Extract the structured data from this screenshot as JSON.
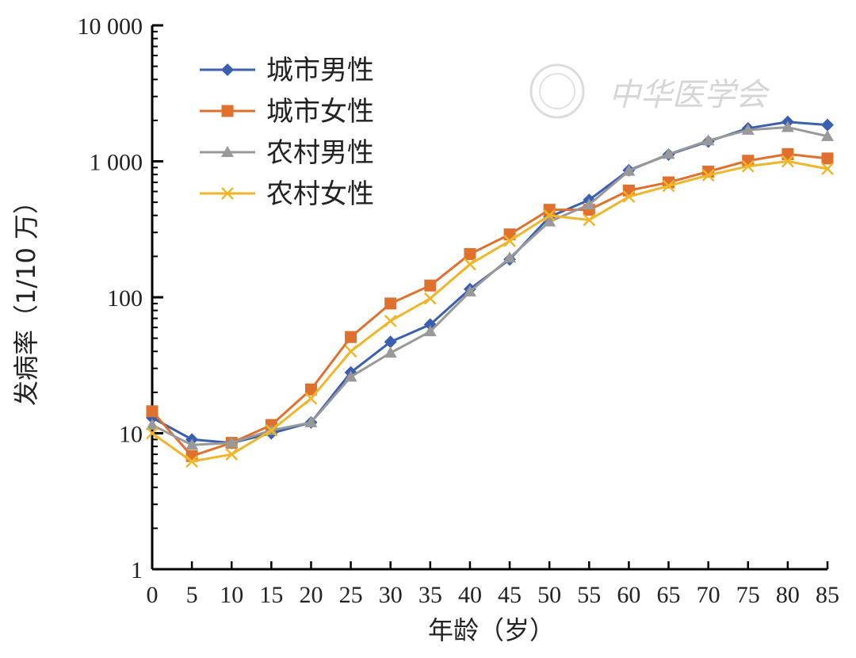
{
  "chart_data": {
    "type": "line",
    "title": "",
    "xlabel": "年龄（岁）",
    "ylabel": "发病率（1/10 万）",
    "y_scale": "log",
    "ylim": [
      1,
      10000
    ],
    "x": [
      0,
      5,
      10,
      15,
      20,
      25,
      30,
      35,
      40,
      45,
      50,
      55,
      60,
      65,
      70,
      75,
      80,
      85
    ],
    "x_tick_labels": [
      "0",
      "5",
      "10",
      "15",
      "20",
      "25",
      "30",
      "35",
      "40",
      "45",
      "50",
      "55",
      "60",
      "65",
      "70",
      "75",
      "80",
      "85"
    ],
    "y_ticks": [
      1,
      10,
      100,
      1000,
      10000
    ],
    "y_tick_labels": [
      "1",
      "10",
      "100",
      "1 000",
      "10 000"
    ],
    "grid": false,
    "legend_position": "top-left",
    "series": [
      {
        "name": "城市男性",
        "color": "#3a5fb0",
        "marker": "diamond",
        "values": [
          13,
          9,
          8.5,
          10,
          12,
          28,
          47,
          63,
          115,
          190,
          390,
          520,
          860,
          1120,
          1400,
          1750,
          1950,
          1850
        ]
      },
      {
        "name": "城市女性",
        "color": "#e0702e",
        "marker": "square",
        "values": [
          14.5,
          6.8,
          8.5,
          11.5,
          21,
          51,
          90,
          122,
          208,
          290,
          440,
          440,
          610,
          700,
          840,
          1010,
          1130,
          1050
        ]
      },
      {
        "name": "农村男性",
        "color": "#999999",
        "marker": "triangle",
        "values": [
          11.5,
          8.2,
          8.5,
          10.5,
          12,
          26,
          39,
          56,
          110,
          195,
          360,
          480,
          850,
          1130,
          1420,
          1700,
          1780,
          1530
        ]
      },
      {
        "name": "农村女性",
        "color": "#f0b528",
        "marker": "x",
        "values": [
          10,
          6.2,
          7,
          10.5,
          18,
          40,
          67,
          98,
          175,
          260,
          400,
          370,
          550,
          660,
          790,
          920,
          1000,
          880
        ]
      }
    ],
    "watermark": "中华医学会"
  }
}
